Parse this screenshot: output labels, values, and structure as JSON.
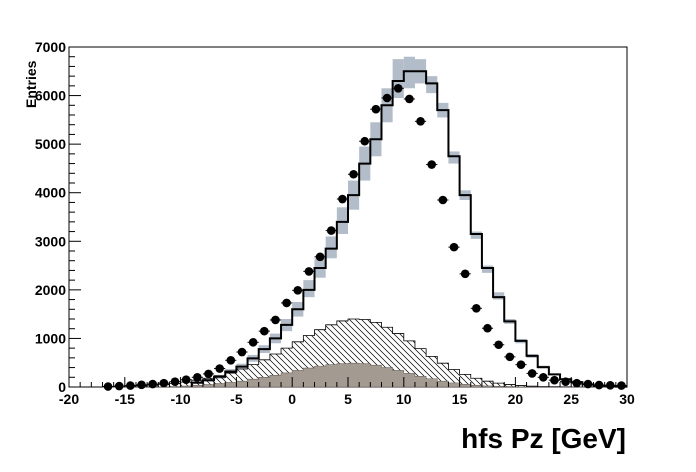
{
  "chart_data": {
    "type": "histogram",
    "xlabel": "hfs Pz [GeV]",
    "ylabel": "Entries",
    "xlim": [
      -20,
      30
    ],
    "ylim": [
      0,
      7000
    ],
    "x_ticks": [
      -20,
      -15,
      -10,
      -5,
      0,
      5,
      10,
      15,
      20,
      25,
      30
    ],
    "y_ticks": [
      0,
      1000,
      2000,
      3000,
      4000,
      5000,
      6000,
      7000
    ],
    "bin_edges_start": -17,
    "bin_width": 1,
    "colors": {
      "mc_band": "#b2bdc9",
      "mc_line": "#000000",
      "hatched": "#000000",
      "filled": "#a39a92",
      "data": "#000000"
    },
    "series": [
      {
        "kind": "mc-total-band",
        "low": [
          0,
          0,
          0,
          0,
          0,
          0,
          0,
          0,
          60,
          110,
          170,
          270,
          360,
          520,
          700,
          900,
          1150,
          1450,
          1850,
          2250,
          2650,
          3150,
          3650,
          4250,
          4750,
          5450,
          5950,
          6150,
          6250,
          6050,
          5550,
          4600,
          3850,
          3050,
          2350,
          1800,
          1300,
          900,
          600,
          380,
          240,
          150,
          90,
          50,
          30,
          15,
          8
        ],
        "high": [
          0,
          0,
          0,
          0,
          0,
          0,
          0,
          0,
          110,
          170,
          250,
          370,
          480,
          660,
          860,
          1100,
          1400,
          1750,
          2200,
          2650,
          3100,
          3700,
          4250,
          4950,
          5450,
          6150,
          6750,
          6800,
          6750,
          6400,
          5850,
          4850,
          4050,
          3200,
          2500,
          1950,
          1400,
          990,
          680,
          440,
          280,
          180,
          110,
          60,
          35,
          20,
          10
        ]
      },
      {
        "kind": "mc-total-line",
        "values": [
          0,
          0,
          0,
          0,
          0,
          0,
          0,
          0,
          90,
          140,
          210,
          320,
          420,
          590,
          780,
          1000,
          1280,
          1600,
          2000,
          2450,
          2850,
          3400,
          3950,
          4600,
          5100,
          5800,
          6300,
          6500,
          6500,
          6250,
          5700,
          4750,
          3950,
          3150,
          2450,
          1850,
          1350,
          950,
          640,
          410,
          260,
          160,
          100,
          55,
          32,
          18,
          9
        ]
      },
      {
        "kind": "hatched-component",
        "values": [
          10,
          15,
          20,
          30,
          40,
          55,
          75,
          100,
          140,
          180,
          230,
          290,
          370,
          460,
          560,
          680,
          800,
          930,
          1060,
          1180,
          1280,
          1360,
          1400,
          1390,
          1330,
          1230,
          1100,
          950,
          790,
          630,
          490,
          360,
          260,
          180,
          120,
          80,
          50,
          30,
          18,
          10,
          6,
          4,
          2,
          1,
          0,
          0,
          0
        ]
      },
      {
        "kind": "filled-component",
        "values": [
          0,
          0,
          0,
          0,
          0,
          5,
          10,
          20,
          35,
          50,
          70,
          95,
          120,
          160,
          200,
          240,
          290,
          340,
          390,
          430,
          460,
          480,
          490,
          480,
          450,
          400,
          340,
          280,
          220,
          170,
          120,
          85,
          55,
          35,
          22,
          14,
          8,
          4,
          2,
          1,
          0,
          0,
          0,
          0,
          0,
          0,
          0
        ]
      },
      {
        "kind": "data-points",
        "x": [
          -16.5,
          -15.5,
          -14.5,
          -13.5,
          -12.5,
          -11.5,
          -10.5,
          -9.5,
          -8.5,
          -7.5,
          -6.5,
          -5.5,
          -4.5,
          -3.5,
          -2.5,
          -1.5,
          -0.5,
          0.5,
          1.5,
          2.5,
          3.5,
          4.5,
          5.5,
          6.5,
          7.5,
          8.5,
          9.5,
          10.5,
          11.5,
          12.5,
          13.5,
          14.5,
          15.5,
          16.5,
          17.5,
          18.5,
          19.5,
          20.5,
          21.5,
          22.5,
          23.5,
          24.5,
          25.5,
          26.5,
          27.5,
          28.5,
          29.5
        ],
        "values": [
          10,
          20,
          30,
          45,
          60,
          80,
          110,
          150,
          200,
          270,
          380,
          550,
          720,
          920,
          1150,
          1380,
          1730,
          1990,
          2380,
          2680,
          3220,
          3870,
          4380,
          5060,
          5720,
          5950,
          6150,
          5930,
          5470,
          4580,
          3850,
          2880,
          2330,
          1620,
          1210,
          870,
          620,
          460,
          280,
          200,
          140,
          110,
          80,
          60,
          40,
          35,
          30
        ]
      }
    ]
  }
}
